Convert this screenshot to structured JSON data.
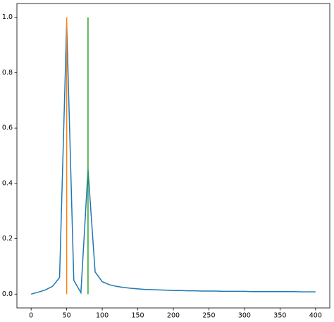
{
  "chart_data": {
    "type": "line",
    "series": [
      {
        "color": "#1f77b4",
        "x": [
          0,
          10,
          20,
          30,
          40,
          50,
          60,
          70,
          80,
          90,
          100,
          110,
          120,
          130,
          140,
          150,
          160,
          170,
          180,
          190,
          200,
          210,
          220,
          230,
          240,
          250,
          260,
          270,
          280,
          290,
          300,
          310,
          320,
          330,
          340,
          350,
          360,
          370,
          380,
          390,
          400
        ],
        "values": [
          0.0,
          0.007,
          0.015,
          0.028,
          0.06,
          0.98,
          0.05,
          0.005,
          0.45,
          0.08,
          0.045,
          0.034,
          0.028,
          0.024,
          0.021,
          0.019,
          0.017,
          0.016,
          0.015,
          0.014,
          0.013,
          0.013,
          0.012,
          0.012,
          0.011,
          0.011,
          0.011,
          0.01,
          0.01,
          0.01,
          0.01,
          0.009,
          0.009,
          0.009,
          0.009,
          0.009,
          0.009,
          0.009,
          0.008,
          0.008,
          0.008
        ]
      },
      {
        "color": "#ff7f0e",
        "x": [
          50,
          50
        ],
        "values": [
          0,
          1
        ]
      },
      {
        "color": "#2ca02c",
        "x": [
          80,
          80
        ],
        "values": [
          0,
          1
        ]
      }
    ],
    "xlim": [
      -20,
      420
    ],
    "ylim": [
      -0.05,
      1.05
    ],
    "xticks": [
      0,
      50,
      100,
      150,
      200,
      250,
      300,
      350,
      400
    ],
    "yticks": [
      {
        "value": 0,
        "label": "0.0"
      },
      {
        "value": 0.2,
        "label": "0.2"
      },
      {
        "value": 0.4,
        "label": "0.4"
      },
      {
        "value": 0.6,
        "label": "0.6"
      },
      {
        "value": 0.8,
        "label": "0.8"
      },
      {
        "value": 1,
        "label": "1.0"
      }
    ]
  }
}
